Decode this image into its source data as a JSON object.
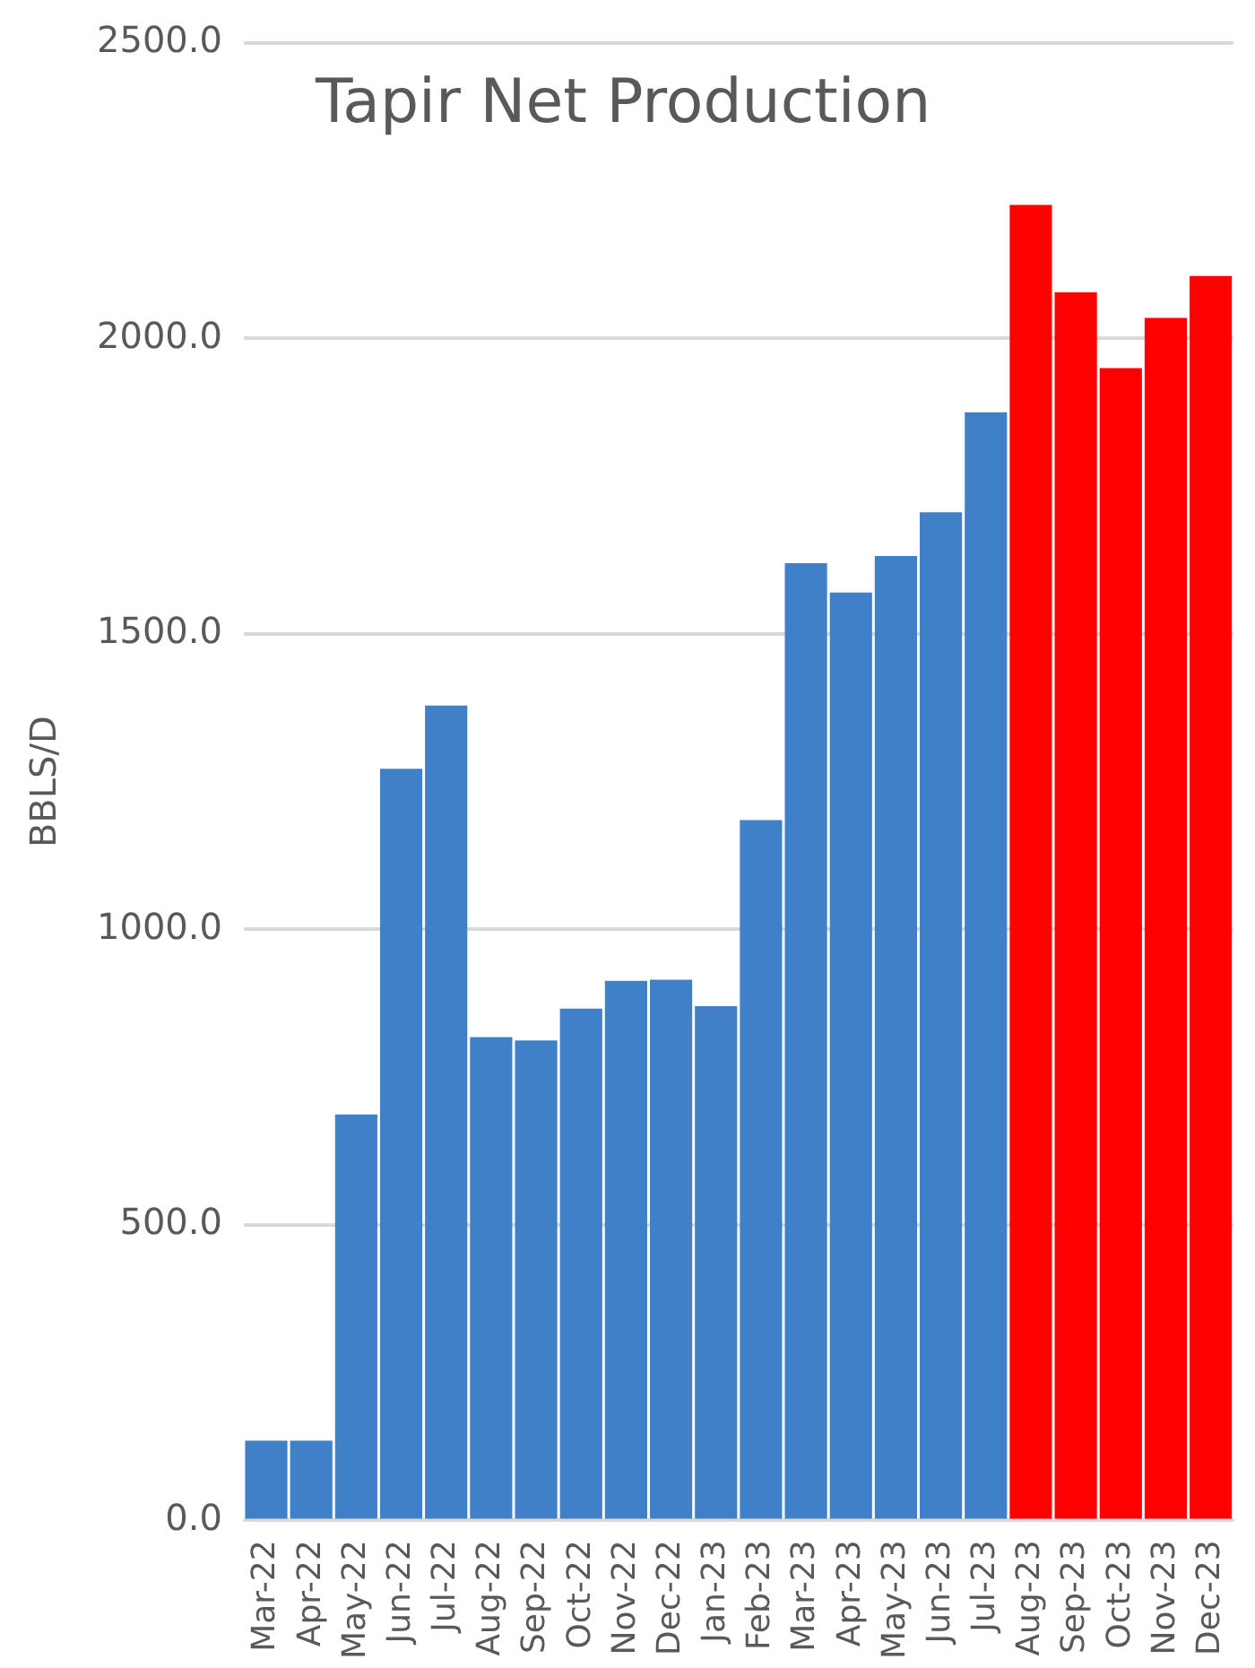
{
  "chart_data": {
    "type": "bar",
    "title": "Tapir Net Production",
    "ylabel": "BBLS/D",
    "categories": [
      "Mar-22",
      "Apr-22",
      "May-22",
      "Jun-22",
      "Jul-22",
      "Aug-22",
      "Sep-22",
      "Oct-22",
      "Nov-22",
      "Dec-22",
      "Jan-23",
      "Feb-23",
      "Mar-23",
      "Apr-23",
      "May-23",
      "Jun-23",
      "Jul-23",
      "Aug-23",
      "Sep-23",
      "Oct-23",
      "Nov-23",
      "Dec-23"
    ],
    "values": [
      135,
      135,
      687,
      1272,
      1379,
      818,
      812,
      866,
      913,
      915,
      870,
      1185,
      1620,
      1570,
      1632,
      1706,
      1875,
      2226,
      2078,
      1950,
      2035,
      2106
    ],
    "colors": [
      "#4080c8",
      "#4080c8",
      "#4080c8",
      "#4080c8",
      "#4080c8",
      "#4080c8",
      "#4080c8",
      "#4080c8",
      "#4080c8",
      "#4080c8",
      "#4080c8",
      "#4080c8",
      "#4080c8",
      "#4080c8",
      "#4080c8",
      "#4080c8",
      "#4080c8",
      "#ff0000",
      "#ff0000",
      "#ff0000",
      "#ff0000",
      "#ff0000"
    ],
    "ylim": [
      0,
      2500
    ],
    "yticks": [
      {
        "value": 0,
        "label": "0.0"
      },
      {
        "value": 500,
        "label": "500.0"
      },
      {
        "value": 1000,
        "label": "1000.0"
      },
      {
        "value": 1500,
        "label": "1500.0"
      },
      {
        "value": 2000,
        "label": "2000.0"
      },
      {
        "value": 2500,
        "label": "2500.0"
      }
    ],
    "grid": "y"
  }
}
